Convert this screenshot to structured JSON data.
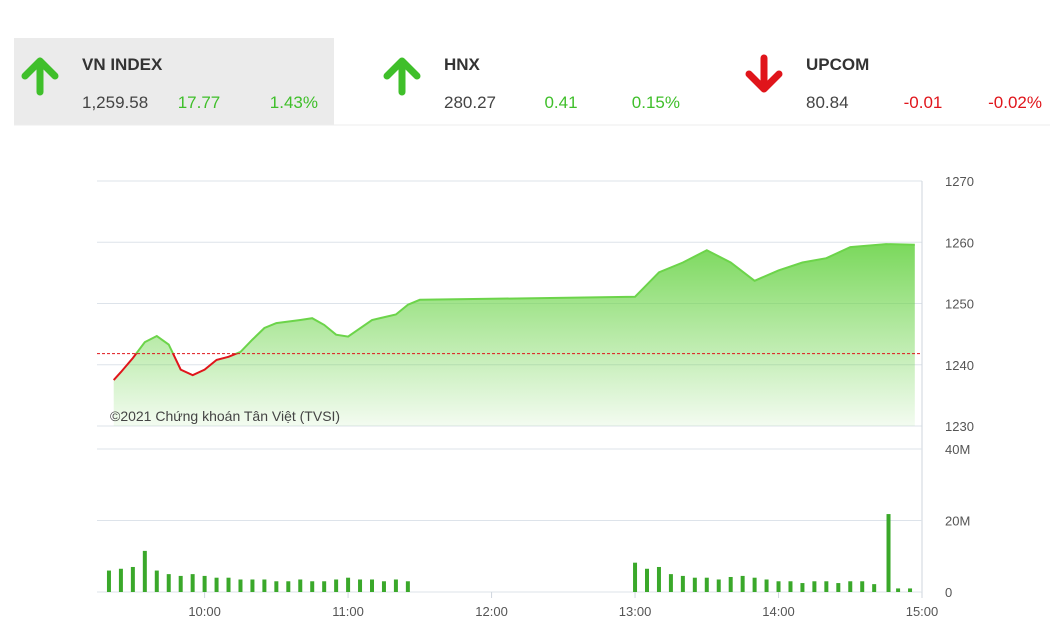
{
  "indices": [
    {
      "name": "VN INDEX",
      "value": "1,259.58",
      "change": "17.77",
      "percent": "1.43%",
      "direction": "up",
      "selected": true
    },
    {
      "name": "HNX",
      "value": "280.27",
      "change": "0.41",
      "percent": "0.15%",
      "direction": "up",
      "selected": false
    },
    {
      "name": "UPCOM",
      "value": "80.84",
      "change": "-0.01",
      "percent": "-0.02%",
      "direction": "down",
      "selected": false
    }
  ],
  "chart_data": [
    {
      "type": "line",
      "annotation": "©2021 Chứng khoán Tân Việt (TVSI)",
      "x": [
        "09:22",
        "09:25",
        "09:30",
        "09:35",
        "09:40",
        "09:45",
        "09:50",
        "09:55",
        "10:00",
        "10:05",
        "10:10",
        "10:15",
        "10:20",
        "10:25",
        "10:30",
        "10:40",
        "10:45",
        "10:50",
        "10:55",
        "11:00",
        "11:10",
        "11:20",
        "11:25",
        "11:30",
        "13:00",
        "13:10",
        "13:20",
        "13:30",
        "13:40",
        "13:50",
        "14:00",
        "14:10",
        "14:20",
        "14:30",
        "14:45",
        "14:57"
      ],
      "series": [
        {
          "name": "VN INDEX",
          "color": "#6cd44a",
          "values": [
            1237.5,
            1238.8,
            1241.1,
            1243.7,
            1244.7,
            1243.3,
            1239.2,
            1238.3,
            1239.2,
            1240.8,
            1241.3,
            1242.1,
            1244.1,
            1246.0,
            1246.8,
            1247.3,
            1247.6,
            1246.5,
            1244.9,
            1244.6,
            1247.3,
            1248.2,
            1249.8,
            1250.6,
            1251.1,
            1255.1,
            1256.7,
            1258.7,
            1256.7,
            1253.7,
            1255.4,
            1256.7,
            1257.4,
            1259.2,
            1259.7,
            1259.58
          ]
        }
      ],
      "down_color": "#e0151b",
      "reference_line": 1241.81,
      "xlim": [
        "09:15",
        "15:00"
      ],
      "ylim": [
        1230,
        1270
      ],
      "yticks": [
        1230,
        1240,
        1250,
        1260,
        1270
      ],
      "grid": true
    },
    {
      "type": "bar",
      "x": [
        "09:20",
        "09:25",
        "09:30",
        "09:35",
        "09:40",
        "09:45",
        "09:50",
        "09:55",
        "10:00",
        "10:05",
        "10:10",
        "10:15",
        "10:20",
        "10:25",
        "10:30",
        "10:35",
        "10:40",
        "10:45",
        "10:50",
        "10:55",
        "11:00",
        "11:05",
        "11:10",
        "11:15",
        "11:20",
        "11:25",
        "13:00",
        "13:05",
        "13:10",
        "13:15",
        "13:20",
        "13:25",
        "13:30",
        "13:35",
        "13:40",
        "13:45",
        "13:50",
        "13:55",
        "14:00",
        "14:05",
        "14:10",
        "14:15",
        "14:20",
        "14:25",
        "14:30",
        "14:35",
        "14:40",
        "14:46",
        "14:50",
        "14:55"
      ],
      "values": [
        6000000,
        6500000,
        7000000,
        11500000,
        6000000,
        5000000,
        4500000,
        5000000,
        4500000,
        4000000,
        4000000,
        3500000,
        3500000,
        3500000,
        3000000,
        3000000,
        3500000,
        3000000,
        3000000,
        3500000,
        4000000,
        3500000,
        3500000,
        3000000,
        3500000,
        3000000,
        8200000,
        6500000,
        7000000,
        5000000,
        4500000,
        4000000,
        4000000,
        3500000,
        4200000,
        4500000,
        4000000,
        3500000,
        3000000,
        3000000,
        2500000,
        3000000,
        3000000,
        2500000,
        3000000,
        3000000,
        2200000,
        21800000,
        1000000,
        1000000
      ],
      "color": "#3aa82a",
      "xlim": [
        "09:15",
        "15:00"
      ],
      "ylim": [
        0,
        40000000
      ],
      "yticks": [
        {
          "value": 0,
          "label": "0"
        },
        {
          "value": 20000000,
          "label": "20M"
        },
        {
          "value": 40000000,
          "label": "40M"
        }
      ],
      "xticks": [
        "10:00",
        "11:00",
        "12:00",
        "13:00",
        "14:00",
        "15:00"
      ],
      "grid": true
    }
  ]
}
